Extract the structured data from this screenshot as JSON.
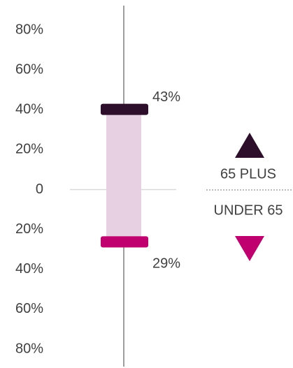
{
  "chart_data": {
    "type": "bar",
    "series": [
      {
        "name": "65 PLUS",
        "color": "#2e0f2b",
        "values": [
          43
        ],
        "value_labels": [
          "43%"
        ]
      },
      {
        "name": "UNDER 65",
        "color": "#c0006e",
        "values": [
          -29
        ],
        "value_labels": [
          "29%"
        ]
      }
    ],
    "range_color": "#e8d0e3",
    "label_color": "#5c1049",
    "ylim": [
      -80,
      80
    ],
    "yticks": [
      {
        "value": 80,
        "label": "80%"
      },
      {
        "value": 60,
        "label": "60%"
      },
      {
        "value": 40,
        "label": "40%"
      },
      {
        "value": 20,
        "label": "20%"
      },
      0,
      {
        "value": -20,
        "label": "20%"
      },
      {
        "value": -40,
        "label": "40%"
      },
      {
        "value": -60,
        "label": "60%"
      },
      {
        "value": -80,
        "label": "80%"
      }
    ]
  }
}
